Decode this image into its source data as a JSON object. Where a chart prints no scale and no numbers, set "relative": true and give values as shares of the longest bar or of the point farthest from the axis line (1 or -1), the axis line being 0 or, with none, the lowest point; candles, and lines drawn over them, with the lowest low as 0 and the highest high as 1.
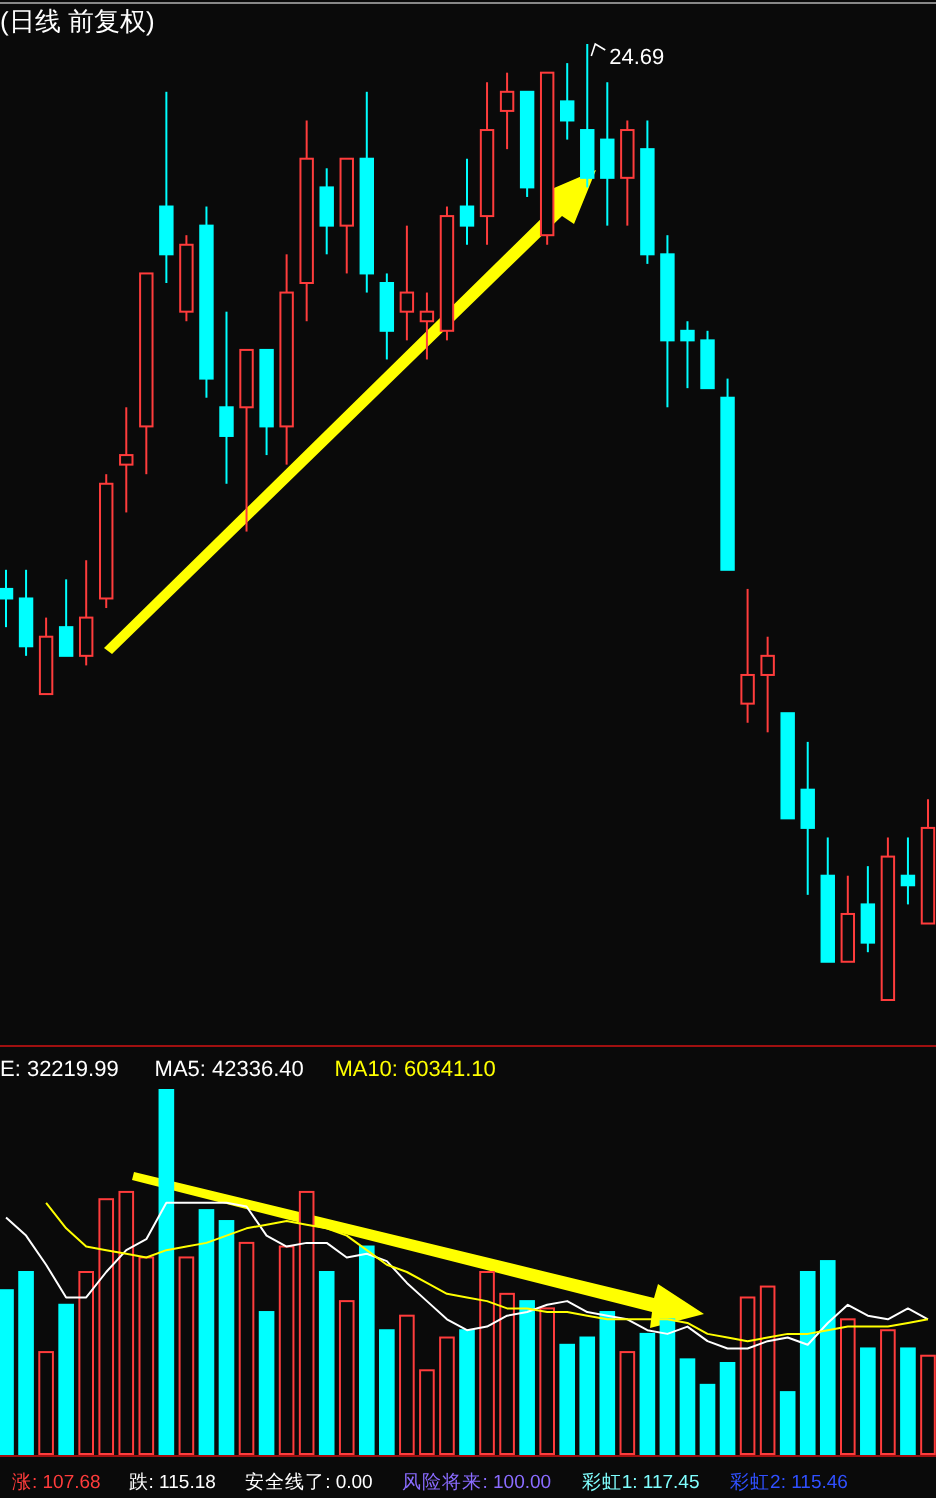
{
  "chart_data": [
    {
      "type": "candlestick",
      "title": "(日线 前复权)",
      "relative": true,
      "categories": [
        null,
        null,
        null,
        null,
        null,
        null,
        null,
        null,
        null,
        null,
        null,
        null,
        null,
        null,
        null,
        null,
        null,
        null,
        null,
        null,
        null,
        null,
        null,
        null,
        null,
        null,
        null,
        null,
        null,
        null,
        null,
        null,
        null,
        null,
        null,
        null,
        null,
        null,
        null,
        null,
        null,
        null,
        null,
        null,
        null,
        null,
        null
      ],
      "ohlc": [
        [
          0.43,
          0.45,
          0.39,
          0.42
        ],
        [
          0.42,
          0.45,
          0.36,
          0.37
        ],
        [
          0.32,
          0.4,
          0.32,
          0.38
        ],
        [
          0.39,
          0.44,
          0.36,
          0.36
        ],
        [
          0.36,
          0.46,
          0.35,
          0.4
        ],
        [
          0.42,
          0.55,
          0.41,
          0.54
        ],
        [
          0.56,
          0.62,
          0.51,
          0.57
        ],
        [
          0.6,
          0.76,
          0.55,
          0.76
        ],
        [
          0.83,
          0.95,
          0.75,
          0.78
        ],
        [
          0.72,
          0.8,
          0.71,
          0.79
        ],
        [
          0.81,
          0.83,
          0.63,
          0.65
        ],
        [
          0.62,
          0.72,
          0.54,
          0.59
        ],
        [
          0.62,
          0.68,
          0.49,
          0.68
        ],
        [
          0.68,
          0.68,
          0.57,
          0.6
        ],
        [
          0.6,
          0.78,
          0.56,
          0.74
        ],
        [
          0.75,
          0.92,
          0.71,
          0.88
        ],
        [
          0.85,
          0.87,
          0.78,
          0.81
        ],
        [
          0.81,
          0.88,
          0.76,
          0.88
        ],
        [
          0.88,
          0.95,
          0.74,
          0.76
        ],
        [
          0.75,
          0.76,
          0.67,
          0.7
        ],
        [
          0.72,
          0.81,
          0.69,
          0.74
        ],
        [
          0.71,
          0.74,
          0.67,
          0.72
        ],
        [
          0.7,
          0.83,
          0.69,
          0.82
        ],
        [
          0.83,
          0.88,
          0.79,
          0.81
        ],
        [
          0.82,
          0.96,
          0.79,
          0.91
        ],
        [
          0.93,
          0.97,
          0.89,
          0.95
        ],
        [
          0.95,
          0.95,
          0.84,
          0.85
        ],
        [
          0.8,
          0.97,
          0.79,
          0.97
        ],
        [
          0.94,
          0.98,
          0.9,
          0.92
        ],
        [
          0.91,
          1.0,
          0.85,
          0.86
        ],
        [
          0.9,
          0.96,
          0.81,
          0.86
        ],
        [
          0.86,
          0.92,
          0.81,
          0.91
        ],
        [
          0.89,
          0.92,
          0.77,
          0.78
        ],
        [
          0.78,
          0.8,
          0.62,
          0.69
        ],
        [
          0.7,
          0.71,
          0.64,
          0.69
        ],
        [
          0.69,
          0.7,
          0.64,
          0.64
        ],
        [
          0.63,
          0.65,
          0.45,
          0.45
        ],
        [
          0.31,
          0.43,
          0.29,
          0.34
        ],
        [
          0.34,
          0.38,
          0.28,
          0.36
        ],
        [
          0.3,
          0.3,
          0.19,
          0.19
        ],
        [
          0.22,
          0.27,
          0.11,
          0.18
        ],
        [
          0.13,
          0.17,
          0.04,
          0.04
        ],
        [
          0.04,
          0.13,
          0.04,
          0.09
        ],
        [
          0.1,
          0.14,
          0.05,
          0.06
        ],
        [
          0.0,
          0.17,
          0.0,
          0.15
        ],
        [
          0.13,
          0.17,
          0.1,
          0.12
        ],
        [
          0.08,
          0.21,
          0.08,
          0.18
        ]
      ],
      "colors": [
        "#00ffff",
        "#00ffff",
        "#ff3c3c",
        "#00ffff",
        "#ff3c3c",
        "#ff3c3c",
        "#ff3c3c",
        "#ff3c3c",
        "#00ffff",
        "#ff3c3c",
        "#00ffff",
        "#00ffff",
        "#ff3c3c",
        "#00ffff",
        "#ff3c3c",
        "#ff3c3c",
        "#00ffff",
        "#ff3c3c",
        "#00ffff",
        "#00ffff",
        "#ff3c3c",
        "#ff3c3c",
        "#ff3c3c",
        "#00ffff",
        "#ff3c3c",
        "#ff3c3c",
        "#00ffff",
        "#ff3c3c",
        "#00ffff",
        "#00ffff",
        "#00ffff",
        "#ff3c3c",
        "#00ffff",
        "#00ffff",
        "#00ffff",
        "#00ffff",
        "#00ffff",
        "#ff3c3c",
        "#ff3c3c",
        "#00ffff",
        "#00ffff",
        "#00ffff",
        "#ff3c3c",
        "#00ffff",
        "#ff3c3c",
        "#00ffff",
        "#ff3c3c"
      ],
      "annotations": [
        "24.69"
      ]
    },
    {
      "type": "bar",
      "relative": true,
      "legend": "top left",
      "categories": [
        null,
        null,
        null,
        null,
        null,
        null,
        null,
        null,
        null,
        null,
        null,
        null,
        null,
        null,
        null,
        null,
        null,
        null,
        null,
        null,
        null,
        null,
        null,
        null,
        null,
        null,
        null,
        null,
        null,
        null,
        null,
        null,
        null,
        null,
        null,
        null,
        null,
        null,
        null,
        null,
        null,
        null,
        null,
        null,
        null,
        null,
        null
      ],
      "series": [
        {
          "type": "bar",
          "values": [
            0.45,
            0.5,
            0.28,
            0.41,
            0.5,
            0.7,
            0.72,
            0.54,
            1.0,
            0.54,
            0.67,
            0.64,
            0.58,
            0.39,
            0.57,
            0.72,
            0.5,
            0.42,
            0.57,
            0.34,
            0.38,
            0.23,
            0.32,
            0.34,
            0.5,
            0.44,
            0.42,
            0.4,
            0.3,
            0.32,
            0.39,
            0.28,
            0.33,
            0.37,
            0.26,
            0.19,
            0.25,
            0.43,
            0.46,
            0.17,
            0.5,
            0.53,
            0.37,
            0.29,
            0.34,
            0.29,
            0.27
          ],
          "colors": [
            "#00ffff",
            "#00ffff",
            "#ff3c3c",
            "#00ffff",
            "#ff3c3c",
            "#ff3c3c",
            "#ff3c3c",
            "#ff3c3c",
            "#00ffff",
            "#ff3c3c",
            "#00ffff",
            "#00ffff",
            "#ff3c3c",
            "#00ffff",
            "#ff3c3c",
            "#ff3c3c",
            "#00ffff",
            "#ff3c3c",
            "#00ffff",
            "#00ffff",
            "#ff3c3c",
            "#ff3c3c",
            "#ff3c3c",
            "#00ffff",
            "#ff3c3c",
            "#ff3c3c",
            "#00ffff",
            "#ff3c3c",
            "#00ffff",
            "#00ffff",
            "#00ffff",
            "#ff3c3c",
            "#00ffff",
            "#00ffff",
            "#00ffff",
            "#00ffff",
            "#00ffff",
            "#ff3c3c",
            "#ff3c3c",
            "#00ffff",
            "#00ffff",
            "#00ffff",
            "#ff3c3c",
            "#00ffff",
            "#ff3c3c",
            "#00ffff",
            "#ff3c3c"
          ]
        },
        {
          "type": "line",
          "name": "MA5: 42336.40",
          "color": "#ffffff",
          "values": [
            0.65,
            0.6,
            0.52,
            0.43,
            0.43,
            0.5,
            0.56,
            0.59,
            0.69,
            0.69,
            0.69,
            0.69,
            0.68,
            0.6,
            0.57,
            0.58,
            0.58,
            0.54,
            0.55,
            0.53,
            0.47,
            0.42,
            0.37,
            0.34,
            0.35,
            0.38,
            0.39,
            0.41,
            0.42,
            0.39,
            0.38,
            0.37,
            0.34,
            0.33,
            0.35,
            0.31,
            0.29,
            0.29,
            0.31,
            0.32,
            0.3,
            0.36,
            0.41,
            0.38,
            0.37,
            0.4,
            0.37
          ]
        },
        {
          "type": "line",
          "name": "MA10: 60341.10",
          "color": "#ffff00",
          "values": [
            null,
            null,
            0.69,
            0.62,
            0.57,
            0.56,
            0.55,
            0.54,
            0.56,
            0.57,
            0.58,
            0.6,
            0.62,
            0.63,
            0.64,
            0.63,
            0.62,
            0.6,
            0.56,
            0.52,
            0.5,
            0.47,
            0.44,
            0.43,
            0.42,
            0.4,
            0.4,
            0.39,
            0.39,
            0.38,
            0.37,
            0.37,
            0.37,
            0.37,
            0.36,
            0.33,
            0.32,
            0.31,
            0.32,
            0.33,
            0.33,
            0.34,
            0.35,
            0.35,
            0.35,
            0.36,
            0.37
          ]
        }
      ],
      "annotations": [
        "E: 32219.99",
        "涨: 107.68",
        "跌: 115.18",
        "安全线了: 0.00",
        "风险将来: 100.00",
        "彩虹1: 117.45",
        "彩虹2: 115.46"
      ]
    }
  ]
}
